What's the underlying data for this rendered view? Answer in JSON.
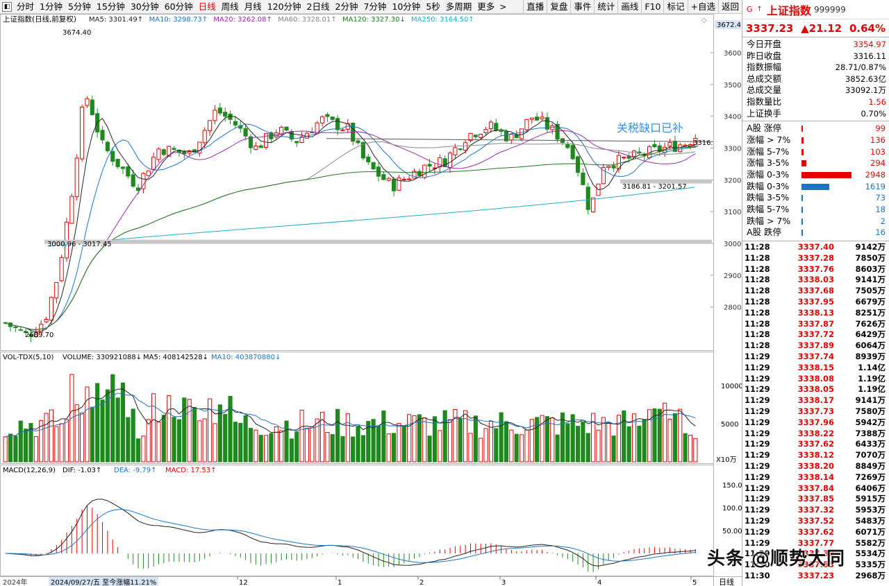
{
  "toolbar": {
    "periods": [
      "分时",
      "1分钟",
      "5分钟",
      "15分钟",
      "30分钟",
      "60分钟",
      "日线",
      "周线",
      "月线",
      "120分钟",
      "2日线",
      "2分钟",
      "7分钟",
      "10分钟",
      "5秒",
      "多周期",
      "更多"
    ],
    "active_period": "日线",
    "tools": [
      "直播",
      "复盘",
      "事件",
      "统计",
      "画线",
      "F10",
      "标记",
      "+自选",
      "返回"
    ]
  },
  "main_panel": {
    "title": "上证指数(日线,前复权)",
    "ma_labels": [
      {
        "text": "MA5: 3301.49↑",
        "color": "#222222"
      },
      {
        "text": "MA10: 3298.73↑",
        "color": "#1a73c8"
      },
      {
        "text": "MA20: 3262.08↑",
        "color": "#9a2aa8"
      },
      {
        "text": "MA60: 3328.01↑",
        "color": "#888888"
      },
      {
        "text": "MA120: 3327.30↓",
        "color": "#1f7a1f"
      },
      {
        "text": "MA250: 3164.50↑",
        "color": "#17b0c8"
      }
    ],
    "y_ticks": [
      "3600",
      "3500",
      "3400",
      "3300",
      "3200",
      "3100",
      "3000",
      "2900",
      "2800"
    ],
    "price_box": "3672.4",
    "price_tag": "3316.",
    "annotations": [
      "3674.40",
      "3000.96 - 3017.45",
      "2689.70",
      "3186.81 - 3201.57"
    ],
    "gap_note": "关税缺口已补"
  },
  "volume_panel": {
    "labels": [
      {
        "text": "VOL-TDX(5,10)",
        "color": "#000000"
      },
      {
        "text": "VOLUME: 330921088↓",
        "color": "#000000"
      },
      {
        "text": "MA5: 408142528↓",
        "color": "#000000"
      },
      {
        "text": "MA10: 403870880↓",
        "color": "#1a73c8"
      }
    ],
    "y_ticks": [
      "10000",
      "5000"
    ],
    "unit": "X10万"
  },
  "macd_panel": {
    "labels": [
      {
        "text": "MACD(12,26,9)",
        "color": "#000000"
      },
      {
        "text": "DIF: -1.03↑",
        "color": "#000000"
      },
      {
        "text": "DEA: -9.79↑",
        "color": "#1a73c8"
      },
      {
        "text": "MACD: 17.53↑",
        "color": "#e60000"
      }
    ],
    "y_ticks": [
      "150.0",
      "100.0",
      "50.00"
    ]
  },
  "bottom_axis": {
    "year": "2024年",
    "date_box": "2024/09/27/五  至今涨幅11.21%",
    "months": [
      "12",
      "1",
      "2",
      "3",
      "4",
      "5"
    ],
    "period_label": "日线"
  },
  "quote": {
    "g_mark": "G",
    "name": "上证指数",
    "code": "999999",
    "price": "3337.23",
    "change": "▲21.12",
    "pct": "0.64%",
    "stats": [
      {
        "label": "今日开盘",
        "value": "3354.97",
        "red": true
      },
      {
        "label": "昨日收盘",
        "value": "3316.11",
        "red": false
      },
      {
        "label": "指数振幅",
        "value": "28.71/0.87%",
        "red": false
      },
      {
        "label": "总成交额",
        "value": "3852.63亿",
        "red": false
      },
      {
        "label": "总成交量",
        "value": "33092.1万",
        "red": false
      },
      {
        "label": "指数量比",
        "value": "1.56",
        "red": true
      },
      {
        "label": "上证换手",
        "value": "0.70%",
        "red": false
      }
    ]
  },
  "distribution": [
    {
      "label": "A股 涨停",
      "count": "99",
      "color": "#e60000",
      "up": true
    },
    {
      "label": "涨幅 > 7%",
      "count": "136",
      "color": "#e60000",
      "up": true
    },
    {
      "label": "涨幅 5-7%",
      "count": "103",
      "color": "#e60000",
      "up": true
    },
    {
      "label": "涨幅 3-5%",
      "count": "294",
      "color": "#e60000",
      "up": true
    },
    {
      "label": "涨幅 0-3%",
      "count": "2948",
      "color": "#e60000",
      "up": true
    },
    {
      "label": "跌幅 0-3%",
      "count": "1619",
      "color": "#1a73c8",
      "up": false
    },
    {
      "label": "跌幅 3-5%",
      "count": "73",
      "color": "#1a73c8",
      "up": false
    },
    {
      "label": "跌幅 5-7%",
      "count": "18",
      "color": "#1a73c8",
      "up": false
    },
    {
      "label": "跌幅 > 7%",
      "count": "2",
      "color": "#1a73c8",
      "up": false
    },
    {
      "label": "A股 跌停",
      "count": "16",
      "color": "#1a73c8",
      "up": false
    }
  ],
  "ticks": [
    {
      "time": "11:28",
      "price": "3337.40",
      "vol": "9142万"
    },
    {
      "time": "11:28",
      "price": "3337.28",
      "vol": "7850万"
    },
    {
      "time": "11:28",
      "price": "3337.76",
      "vol": "8603万"
    },
    {
      "time": "11:28",
      "price": "3338.03",
      "vol": "9141万"
    },
    {
      "time": "11:28",
      "price": "3337.68",
      "vol": "7505万"
    },
    {
      "time": "11:28",
      "price": "3337.95",
      "vol": "6679万"
    },
    {
      "time": "11:28",
      "price": "3338.13",
      "vol": "8251万"
    },
    {
      "time": "11:28",
      "price": "3337.87",
      "vol": "7626万"
    },
    {
      "time": "11:28",
      "price": "3337.72",
      "vol": "6429万"
    },
    {
      "time": "11:28",
      "price": "3337.89",
      "vol": "6064万"
    },
    {
      "time": "11:29",
      "price": "3337.74",
      "vol": "8939万"
    },
    {
      "time": "11:29",
      "price": "3338.15",
      "vol": "1.14亿"
    },
    {
      "time": "11:29",
      "price": "3338.08",
      "vol": "1.19亿"
    },
    {
      "time": "11:29",
      "price": "3338.05",
      "vol": "1.19亿"
    },
    {
      "time": "11:29",
      "price": "3338.17",
      "vol": "9141万"
    },
    {
      "time": "11:29",
      "price": "3337.73",
      "vol": "7580万"
    },
    {
      "time": "11:29",
      "price": "3337.96",
      "vol": "5942万"
    },
    {
      "time": "11:29",
      "price": "3338.22",
      "vol": "7388万"
    },
    {
      "time": "11:29",
      "price": "3337.62",
      "vol": "6433万"
    },
    {
      "time": "11:29",
      "price": "3338.12",
      "vol": "7070万"
    },
    {
      "time": "11:29",
      "price": "3338.20",
      "vol": "8849万"
    },
    {
      "time": "11:29",
      "price": "3338.14",
      "vol": "7269万"
    },
    {
      "time": "11:29",
      "price": "3337.84",
      "vol": "6406万"
    },
    {
      "time": "11:29",
      "price": "3337.85",
      "vol": "5915万"
    },
    {
      "time": "11:29",
      "price": "3337.32",
      "vol": "5953万"
    },
    {
      "time": "11:29",
      "price": "3337.52",
      "vol": "5483万"
    },
    {
      "time": "11:29",
      "price": "3337.62",
      "vol": "6071万"
    },
    {
      "time": "11:29",
      "price": "3337.77",
      "vol": "5582万"
    },
    {
      "time": "11:29",
      "price": "3337.38",
      "vol": "5534万"
    },
    {
      "time": "11:30",
      "price": "3337.53",
      "vol": "5335万"
    },
    {
      "time": "11:30",
      "price": "3337.23",
      "vol": "2968万"
    }
  ],
  "watermark": "头条 @顺势大同",
  "colors": {
    "up": "#e60000",
    "down": "#1e8a1e",
    "ma5": "#222222",
    "ma10": "#1a73c8",
    "ma20": "#9a2aa8",
    "ma60": "#888888",
    "ma120": "#1f7a1f",
    "ma250": "#17b0c8"
  }
}
